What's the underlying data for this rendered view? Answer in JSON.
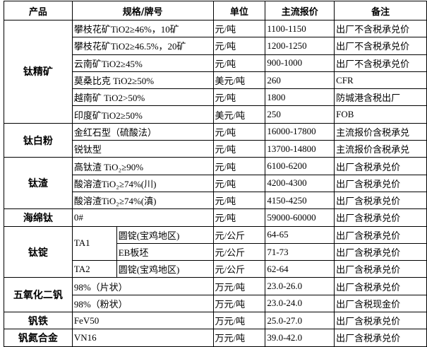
{
  "headers": [
    "产品",
    "规格/牌号",
    "单位",
    "主流报价",
    "备注"
  ],
  "groups": [
    {
      "product": "钛精矿",
      "rows": [
        {
          "spec": "攀枝花矿TiO2≥46%，10矿",
          "unit": "元/吨",
          "price": "1100-1150",
          "note": "出厂不含税承兑价"
        },
        {
          "spec": "攀枝花矿TiO2≥46.5%，20矿",
          "unit": "元/吨",
          "price": "1200-1250",
          "note": "出厂不含税承兑价"
        },
        {
          "spec": "云南矿TiO2≥45%",
          "unit": "元/吨",
          "price": "900-1000",
          "note": "出厂不含税承兑价"
        },
        {
          "spec": "莫桑比克 TiO2≥50%",
          "unit": "美元/吨",
          "price": "260",
          "note": "CFR"
        },
        {
          "spec": "越南矿 TiO2>50%",
          "unit": "元/吨",
          "price": "1800",
          "note": "防城港含税出厂"
        },
        {
          "spec": "印度矿TiO2≥50%",
          "unit": "美元/吨",
          "price": "250",
          "note": "FOB"
        }
      ]
    },
    {
      "product": "钛白粉",
      "rows": [
        {
          "spec": "金红石型（硫酸法）",
          "unit": "元/吨",
          "price": "16000-17800",
          "note": "主流报价含税承兑"
        },
        {
          "spec": "锐钛型",
          "unit": "元/吨",
          "price": "13700-14800",
          "note": "主流报价含税承兑"
        }
      ]
    },
    {
      "product": "钛渣",
      "rows": [
        {
          "spec": "高钛渣 TiO₂≥90%",
          "unit": "元/吨",
          "price": "6100-6200",
          "note": "出厂含税承兑价"
        },
        {
          "spec": "酸溶渣TiO₂≥74%(川)",
          "unit": "元/吨",
          "price": "4200-4300",
          "note": "出厂含税承兑价"
        },
        {
          "spec": "酸溶渣TiO₂≥74%(滇)",
          "unit": "元/吨",
          "price": "4150-4250",
          "note": "出厂含税承兑价"
        }
      ]
    },
    {
      "product": "海绵钛",
      "rows": [
        {
          "spec": "0#",
          "unit": "元/吨",
          "price": "59000-60000",
          "note": "出厂含税承兑价"
        }
      ]
    },
    {
      "product": "钛锭",
      "rows": [
        {
          "grade": "TA1",
          "grade_span": 2,
          "form": "圆锭(宝鸡地区)",
          "unit": "元/公斤",
          "price": "64-65",
          "note": "出厂含税承兑价"
        },
        {
          "form": "EB板坯",
          "unit": "元/公斤",
          "price": "71-73",
          "note": "出厂含税承兑价"
        },
        {
          "grade": "TA2",
          "grade_span": 1,
          "form": "圆锭(宝鸡地区)",
          "unit": "元/公斤",
          "price": "62-64",
          "note": "出厂含税承兑价"
        }
      ]
    },
    {
      "product": "五氧化二钒",
      "rows": [
        {
          "spec": "98%（片状）",
          "unit": "万元/吨",
          "price": "23.0-26.0",
          "note": "出厂含税承兑价"
        },
        {
          "spec": "98%（粉状）",
          "unit": "万元/吨",
          "price": "23.0-24.0",
          "note": "出厂含税现金价"
        }
      ]
    },
    {
      "product": "钒铁",
      "rows": [
        {
          "spec": "FeV50",
          "unit": "万元/吨",
          "price": "25.0-27.0",
          "note": "出厂含税承兑价"
        }
      ]
    },
    {
      "product": "钒氮合金",
      "rows": [
        {
          "spec": "VN16",
          "unit": "万元/吨",
          "price": "39.0-42.0",
          "note": "出厂含税承兑价"
        }
      ]
    }
  ]
}
